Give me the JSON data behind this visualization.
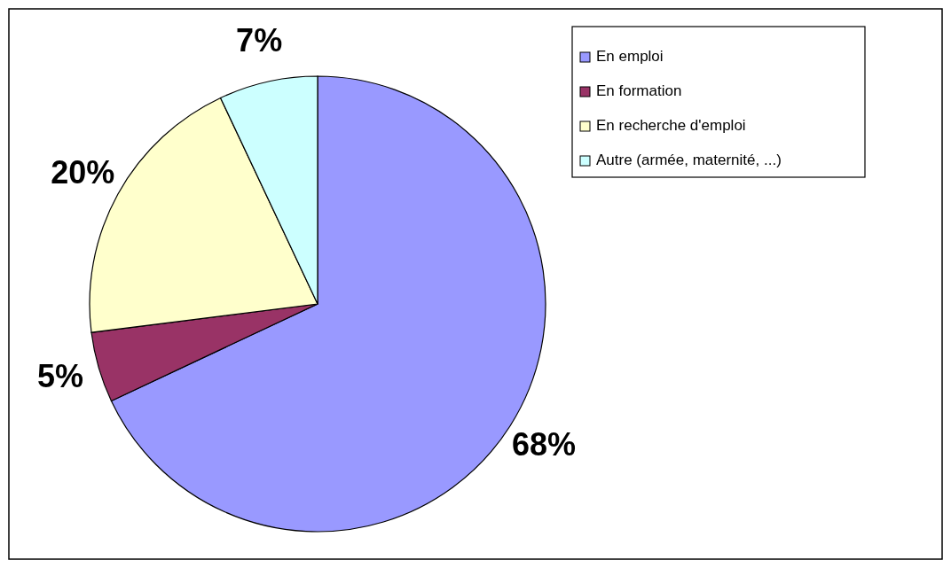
{
  "chart_data": {
    "type": "pie",
    "categories": [
      "En emploi",
      "En formation",
      "En recherche d'emploi",
      "Autre (armée, maternité, ...)"
    ],
    "values": [
      68,
      5,
      20,
      7
    ],
    "colors": [
      "#9999ff",
      "#993366",
      "#ffffcc",
      "#ccffff"
    ],
    "value_labels": [
      "68%",
      "5%",
      "20%",
      "7%"
    ],
    "legend": "top right"
  }
}
